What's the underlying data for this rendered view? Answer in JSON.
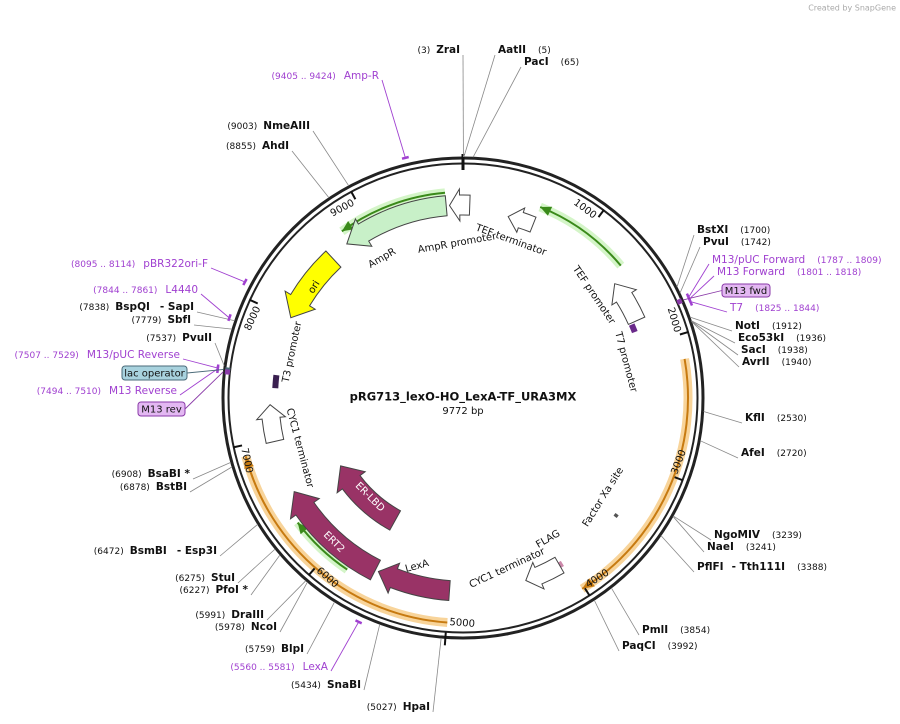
{
  "credit": "Created by SnapGene",
  "title": "pRG713_lexO-HO_LexA-TF_URA3MX",
  "size": "9772 bp",
  "ticks": [
    1000,
    2000,
    3000,
    4000,
    5000,
    6000,
    7000,
    8000,
    9000
  ],
  "sites": [
    {
      "name": "ZraI",
      "pos": "(3)"
    },
    {
      "name": "AatII",
      "pos": "(5)"
    },
    {
      "name": "PacI",
      "pos": "(65)"
    },
    {
      "name": "BstXI",
      "pos": "(1700)"
    },
    {
      "name": "PvuI",
      "pos": "(1742)"
    },
    {
      "name": "NotI",
      "pos": "(1912)"
    },
    {
      "name": "Eco53kI",
      "pos": "(1936)"
    },
    {
      "name": "SacI",
      "pos": "(1938)"
    },
    {
      "name": "AvrII",
      "pos": "(1940)"
    },
    {
      "name": "KflI",
      "pos": "(2530)"
    },
    {
      "name": "AfeI",
      "pos": "(2720)"
    },
    {
      "name": "NgoMIV",
      "pos": "(3239)"
    },
    {
      "name": "NaeI",
      "pos": "(3241)"
    },
    {
      "name": "PflFI",
      "alias": "- Tth111I",
      "pos": "(3388)"
    },
    {
      "name": "PmlI",
      "pos": "(3854)"
    },
    {
      "name": "PaqCI",
      "pos": "(3992)"
    },
    {
      "name": "HpaI",
      "pos": "(5027)"
    },
    {
      "name": "SnaBI",
      "pos": "(5434)"
    },
    {
      "name": "BlpI",
      "pos": "(5759)"
    },
    {
      "name": "NcoI",
      "pos": "(5978)"
    },
    {
      "name": "DraIII",
      "pos": "(5991)"
    },
    {
      "name": "PfoI *",
      "pos": "(6227)"
    },
    {
      "name": "StuI",
      "pos": "(6275)"
    },
    {
      "name": "BsmBI",
      "alias": "- Esp3I",
      "pos": "(6472)"
    },
    {
      "name": "BstBI",
      "pos": "(6878)"
    },
    {
      "name": "BsaBI *",
      "pos": "(6908)"
    },
    {
      "name": "PvuII",
      "pos": "(7537)"
    },
    {
      "name": "SbfI",
      "pos": "(7779)"
    },
    {
      "name": "BspQI",
      "alias": "- SapI",
      "pos": "(7838)"
    },
    {
      "name": "AhdI",
      "pos": "(8855)"
    },
    {
      "name": "NmeAIII",
      "pos": "(9003)"
    }
  ],
  "primers": [
    {
      "name": "Amp-R",
      "range": "(9405 .. 9424)"
    },
    {
      "name": "pBR322ori-F",
      "range": "(8095 .. 8114)"
    },
    {
      "name": "L4440",
      "range": "(7844 .. 7861)"
    },
    {
      "name": "M13/pUC Reverse",
      "range": "(7507 .. 7529)"
    },
    {
      "name": "M13 Reverse",
      "range": "(7494 .. 7510)"
    },
    {
      "name": "LexA",
      "range": "(5560 .. 5581)"
    },
    {
      "name": "M13/pUC Forward",
      "range": "(1787 .. 1809)"
    },
    {
      "name": "M13 Forward",
      "range": "(1801 .. 1818)"
    },
    {
      "name": "T7",
      "range": "(1825 .. 1844)"
    }
  ],
  "boxes": [
    "M13 fwd",
    "lac operator",
    "M13 rev"
  ],
  "features": [
    "AmpR",
    "AmpR promoter",
    "ori",
    "TEF terminator",
    "TEF promoter",
    "T7 promoter",
    "T3 promoter",
    "CYC1 terminator",
    "ER-LBD",
    "ERT2",
    "LexA",
    "FLAG",
    "Factor Xa site",
    "CYC1 terminator"
  ]
}
